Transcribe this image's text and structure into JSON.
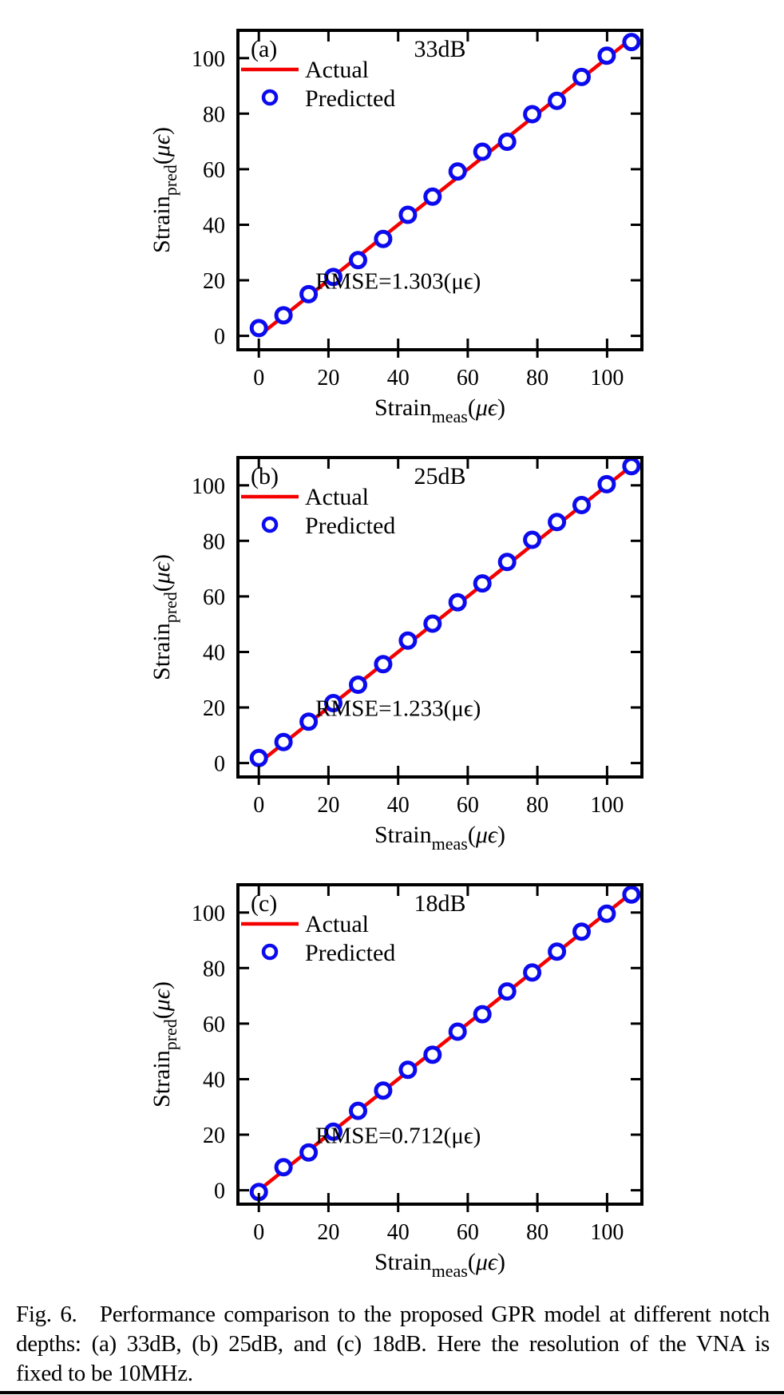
{
  "figure_label": "Fig. 6.",
  "caption": {
    "lines": [
      "Fig. 6.  Performance comparison to the proposed GPR model at different notch",
      "depths: (a) 33dB, (b) 25dB, and (c) 18dB. Here the resolution of the VNA is",
      "fixed to be 10MHz."
    ]
  },
  "colors": {
    "actual_line": "#f40000",
    "predicted_marker": "#0b0bee",
    "axis": "#000000",
    "text": "#000000",
    "background": "#ffffff"
  },
  "legend": {
    "actual": "Actual",
    "predicted": "Predicted",
    "position": "top-left-inside"
  },
  "axes": {
    "xlabel_main": "Strain",
    "xlabel_sub": "meas",
    "xlabel_unit": "(μϵ)",
    "ylabel_main": "Strain",
    "ylabel_sub": "pred",
    "ylabel_unit": "(μϵ)",
    "xticks": [
      0,
      20,
      40,
      60,
      80,
      100
    ],
    "yticks": [
      0,
      20,
      40,
      60,
      80,
      100
    ],
    "xlim": [
      -6,
      110
    ],
    "ylim": [
      -5,
      110
    ],
    "grid": false,
    "box": true
  },
  "chart_data": [
    {
      "type": "scatter",
      "panel": "(a)",
      "title": "33dB",
      "rmse_label": "RMSE=1.303(μϵ)",
      "x": [
        0,
        7.1,
        14.3,
        21.4,
        28.5,
        35.7,
        42.8,
        49.9,
        57.1,
        64.2,
        71.3,
        78.5,
        85.6,
        92.7,
        99.9,
        107
      ],
      "predicted": [
        2.8,
        7.4,
        15.0,
        21.2,
        27.3,
        34.9,
        43.6,
        50.1,
        59.2,
        66.3,
        69.9,
        79.8,
        84.6,
        93.2,
        100.9,
        105.8
      ],
      "actual": {
        "x": [
          0,
          107
        ],
        "y": [
          0,
          107
        ]
      }
    },
    {
      "type": "scatter",
      "panel": "(b)",
      "title": "25dB",
      "rmse_label": "RMSE=1.233(μϵ)",
      "x": [
        0,
        7.1,
        14.3,
        21.4,
        28.5,
        35.7,
        42.8,
        49.9,
        57.1,
        64.2,
        71.3,
        78.5,
        85.6,
        92.7,
        99.9,
        107
      ],
      "predicted": [
        1.8,
        7.6,
        14.9,
        21.6,
        28.2,
        35.6,
        44.1,
        50.2,
        57.9,
        64.7,
        72.4,
        80.4,
        86.8,
        92.9,
        100.4,
        106.9
      ],
      "actual": {
        "x": [
          0,
          107
        ],
        "y": [
          0,
          107
        ]
      }
    },
    {
      "type": "scatter",
      "panel": "(c)",
      "title": "18dB",
      "rmse_label": "RMSE=0.712(μϵ)",
      "x": [
        0,
        7.1,
        14.3,
        21.4,
        28.5,
        35.7,
        42.8,
        49.9,
        57.1,
        64.2,
        71.3,
        78.5,
        85.6,
        92.7,
        99.9,
        107
      ],
      "predicted": [
        -0.6,
        8.3,
        13.6,
        21.1,
        28.6,
        35.9,
        43.4,
        48.8,
        57.1,
        63.4,
        71.6,
        78.4,
        85.9,
        93.1,
        99.6,
        106.5
      ],
      "actual": {
        "x": [
          0,
          107
        ],
        "y": [
          0,
          107
        ]
      }
    }
  ]
}
